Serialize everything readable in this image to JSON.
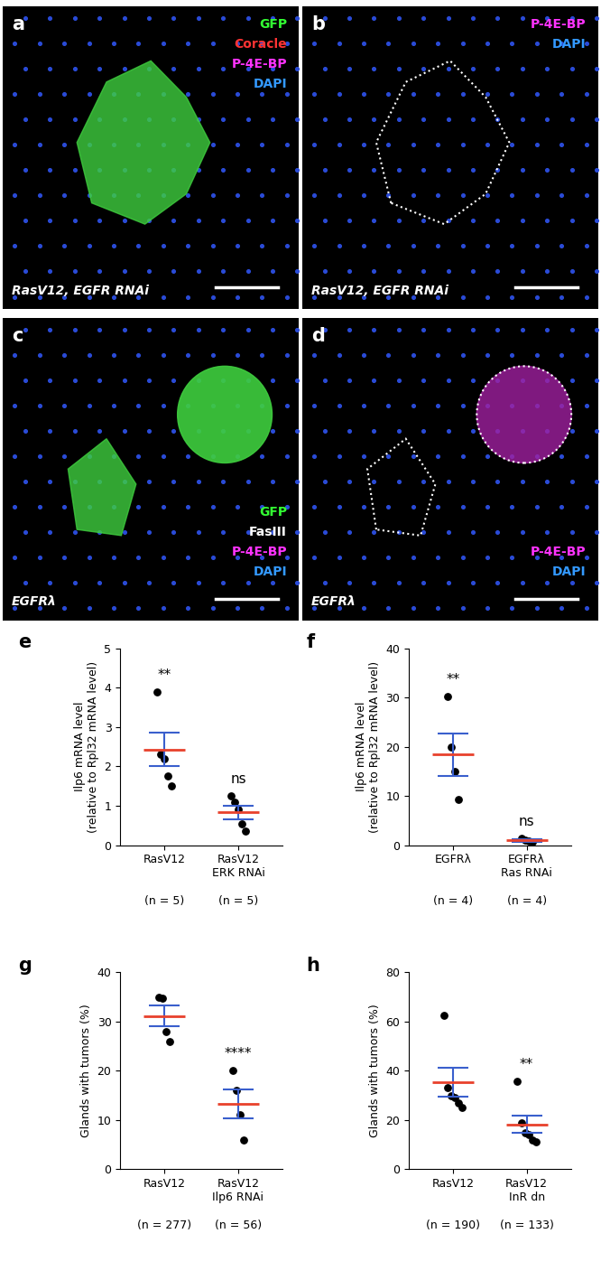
{
  "image_panels": [
    {
      "letter": "a",
      "legend": "upper right",
      "genotype": "RasV12, EGFR RNAi",
      "channels": [
        {
          "text": "GFP",
          "color": "#33ff33"
        },
        {
          "text": "Coracle",
          "color": "#ff3333"
        },
        {
          "text": "P-4E-BP",
          "color": "#ff33ff"
        },
        {
          "text": "DAPI",
          "color": "#3399ff"
        }
      ]
    },
    {
      "letter": "b",
      "legend": "upper right",
      "genotype": "RasV12, EGFR RNAi",
      "channels": [
        {
          "text": "P-4E-BP",
          "color": "#ff33ff"
        },
        {
          "text": "DAPI",
          "color": "#3399ff"
        }
      ]
    },
    {
      "letter": "c",
      "legend": "lower right",
      "genotype": "EGFRλ",
      "channels": [
        {
          "text": "GFP",
          "color": "#33ff33"
        },
        {
          "text": "FasIII",
          "color": "#ffffff"
        },
        {
          "text": "P-4E-BP",
          "color": "#ff33ff"
        },
        {
          "text": "DAPI",
          "color": "#3399ff"
        }
      ]
    },
    {
      "letter": "d",
      "legend": "lower right",
      "genotype": "EGFRλ",
      "channels": [
        {
          "text": "P-4E-BP",
          "color": "#ff33ff"
        },
        {
          "text": "DAPI",
          "color": "#3399ff"
        }
      ]
    }
  ],
  "chart_data": [
    {
      "letter": "e",
      "type": "dot",
      "ylabel": "Ilp6 mRNA level\n(relative to Rpl32 mRNA level)",
      "categories": [
        "RasV12",
        "RasV12\nERK RNAi"
      ],
      "values": [
        [
          3.9,
          2.3,
          2.2,
          1.75,
          1.5
        ],
        [
          1.25,
          1.1,
          0.9,
          0.55,
          0.35
        ]
      ],
      "mean": [
        2.43,
        0.83
      ],
      "error": [
        0.43,
        0.17
      ],
      "significance": [
        "**",
        "ns"
      ],
      "n_labels": [
        "(n = 5)",
        "(n = 5)"
      ],
      "ylim": [
        0,
        5
      ],
      "yticks": [
        0,
        1,
        2,
        3,
        4,
        5
      ],
      "color": "#e8412c"
    },
    {
      "letter": "f",
      "type": "dot",
      "ylabel": "Ilp6 mRNA level\n(relative to Rpl32 mRNA level)",
      "categories": [
        "EGFRλ",
        "EGFRλ\nRas RNAi"
      ],
      "values": [
        [
          30.2,
          20,
          15,
          9.2
        ],
        [
          1.4,
          1.0,
          0.8,
          0.6
        ]
      ],
      "mean": [
        18.4,
        0.95
      ],
      "error": [
        4.3,
        0.2
      ],
      "significance": [
        "**",
        "ns"
      ],
      "n_labels": [
        "(n = 4)",
        "(n = 4)"
      ],
      "ylim": [
        0,
        40
      ],
      "yticks": [
        0,
        10,
        20,
        30,
        40
      ],
      "color": "#e8412c"
    },
    {
      "letter": "g",
      "type": "dot",
      "ylabel": "Glands with tumors (%)",
      "categories": [
        "RasV12",
        "RasV12\nIlp6 RNAi"
      ],
      "values": [
        [
          35,
          34.8,
          28,
          26
        ],
        [
          20,
          16,
          11,
          6
        ]
      ],
      "mean": [
        31.1,
        13.3
      ],
      "error": [
        2.1,
        3.0
      ],
      "significance": [
        null,
        "****"
      ],
      "n_labels": [
        "(n = 277)",
        "(n = 56)"
      ],
      "ylim": [
        0,
        40
      ],
      "yticks": [
        0,
        10,
        20,
        30,
        40
      ],
      "color": "#e8412c"
    },
    {
      "letter": "h",
      "type": "dot",
      "ylabel": "Glands with tumors (%)",
      "categories": [
        "RasV12",
        "RasV12\nInR dn"
      ],
      "values": [
        [
          62.5,
          33,
          30,
          29,
          27,
          25
        ],
        [
          35.7,
          19,
          15,
          14,
          12,
          11
        ]
      ],
      "mean": [
        35.3,
        18.3
      ],
      "error": [
        5.8,
        3.6
      ],
      "significance": [
        null,
        "**"
      ],
      "n_labels": [
        "(n = 190)",
        "(n = 133)"
      ],
      "ylim": [
        0,
        80
      ],
      "yticks": [
        0,
        20,
        40,
        60,
        80
      ],
      "color": "#e8412c"
    }
  ]
}
